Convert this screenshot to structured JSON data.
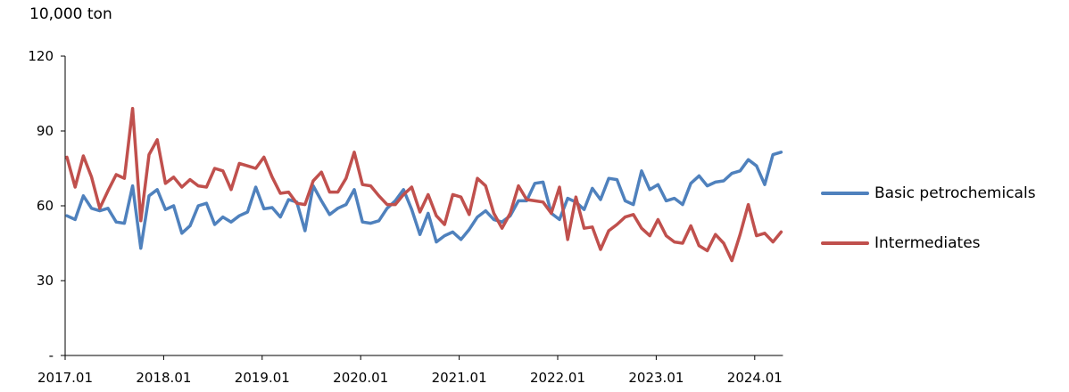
{
  "chart_data": {
    "type": "line",
    "unit_label": "10,000 ton",
    "ylim": [
      0,
      120
    ],
    "y_ticks": [
      {
        "value": 0,
        "label": "-"
      },
      {
        "value": 30,
        "label": "30"
      },
      {
        "value": 60,
        "label": "60"
      },
      {
        "value": 90,
        "label": "90"
      },
      {
        "value": 120,
        "label": "120"
      }
    ],
    "x_ticks": [
      "2017.01",
      "2018.01",
      "2019.01",
      "2020.01",
      "2021.01",
      "2022.01",
      "2023.01",
      "2024.01"
    ],
    "x_start": "2017.01",
    "grid": false,
    "legend_position": "right",
    "series": [
      {
        "name": "Basic petrochemicals",
        "color": "#4F81BD",
        "values": [
          56,
          54.5,
          64,
          59,
          58,
          59,
          53.5,
          53,
          68,
          43,
          64,
          66.5,
          58.5,
          60,
          49,
          52,
          60,
          61,
          52.5,
          55.5,
          53.5,
          56,
          57.5,
          67.5,
          58.8,
          59.3,
          55.5,
          62.5,
          61.5,
          50,
          68,
          62,
          56.5,
          59,
          60.5,
          66.5,
          53.5,
          53,
          54,
          59,
          62,
          66.5,
          58.5,
          48.5,
          57,
          45.5,
          48,
          49.5,
          46.5,
          50.5,
          55.5,
          58,
          54.5,
          53.5,
          56,
          62,
          62,
          69,
          69.5,
          57,
          54.5,
          63,
          61.5,
          58.5,
          67,
          62.5,
          71,
          70.5,
          62,
          60.5,
          74,
          66.5,
          68.5,
          62,
          63,
          60.5,
          69,
          72,
          68,
          69.5,
          70,
          73,
          74,
          78.5,
          76,
          68.5,
          80.5,
          81.5
        ]
      },
      {
        "name": "Intermediates",
        "color": "#C0504D",
        "values": [
          79.5,
          67.5,
          80,
          71.5,
          59,
          66,
          72.5,
          71,
          99,
          54,
          80.5,
          86.5,
          69,
          71.5,
          67.5,
          70.5,
          68,
          67.5,
          75,
          74,
          66.5,
          77,
          76,
          75,
          79.5,
          71.5,
          65,
          65.5,
          61,
          60.5,
          70,
          73.5,
          65.5,
          65.5,
          71,
          81.5,
          68.5,
          68,
          64,
          60.5,
          60.5,
          64.5,
          67.5,
          57.5,
          64.5,
          56,
          52.5,
          64.5,
          63.5,
          56.5,
          71,
          68,
          57,
          51,
          57,
          68,
          62.5,
          62,
          61.5,
          57,
          67.5,
          46.5,
          63.5,
          51,
          51.5,
          42.5,
          50,
          52.5,
          55.5,
          56.5,
          51,
          48,
          54.5,
          48,
          45.5,
          45,
          52,
          44,
          42,
          48.5,
          45,
          38,
          48.5,
          60.5,
          48,
          49,
          45.5,
          49.5
        ]
      }
    ]
  }
}
